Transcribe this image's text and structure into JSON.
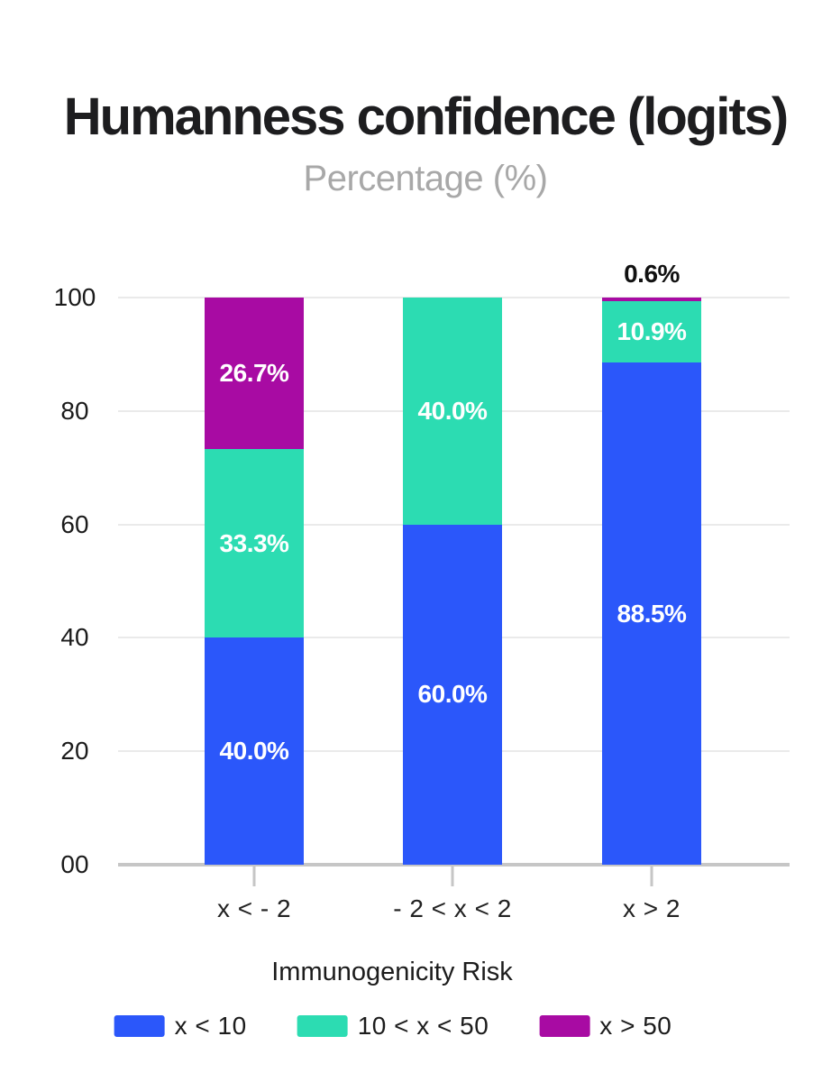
{
  "header": {
    "title": "Humanness confidence (logits)",
    "subtitle": "Percentage (%)"
  },
  "chart_data": {
    "type": "bar",
    "stacked": true,
    "percent_stacked": true,
    "title": "Humanness confidence (logits)",
    "subtitle": "Percentage (%)",
    "categories": [
      "x < - 2",
      "- 2 < x < 2",
      "x > 2"
    ],
    "series": [
      {
        "name": "x < 10",
        "color": "#2b57fa",
        "values": [
          40.0,
          60.0,
          88.5
        ]
      },
      {
        "name": "10 < x < 50",
        "color": "#2cdcb2",
        "values": [
          33.3,
          40.0,
          10.9
        ]
      },
      {
        "name": "x > 50",
        "color": "#a80ba3",
        "values": [
          26.7,
          0,
          0.6
        ]
      }
    ],
    "data_label_format": "{value}%",
    "data_labels": [
      "40.0%",
      "60.0%",
      "88.5%",
      "33.3%",
      "40.0%",
      "10.9%",
      "26.7%",
      "0.6%"
    ],
    "xlabel": "Immunogenicity Risk",
    "ylabel": "",
    "ylim": [
      0,
      100
    ],
    "yticks": [
      {
        "label": "00",
        "value": 0
      },
      {
        "label": "20",
        "value": 20
      },
      {
        "label": "40",
        "value": 40
      },
      {
        "label": "60",
        "value": 60
      },
      {
        "label": "80",
        "value": 80
      },
      {
        "label": "100",
        "value": 100
      }
    ],
    "grid": true,
    "legend_position": "bottom"
  },
  "colors": {
    "series_blue": "#2b57fa",
    "series_teal": "#2cdcb2",
    "series_purple": "#a80ba3",
    "inside_label": "#ffffff",
    "outside_label": "#111111",
    "gridline": "#eaeaea",
    "axis_line": "#c6c6c6",
    "title_text": "#1d1d1f",
    "subtitle_text": "#a8a8a8"
  }
}
